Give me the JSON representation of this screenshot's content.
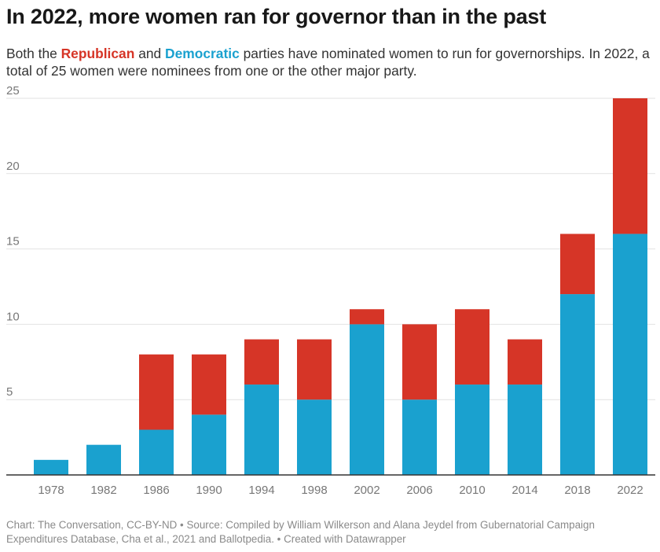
{
  "title": "In 2022, more women ran for governor than in the past",
  "subtitle": {
    "prefix": "Both the ",
    "republican_label": "Republican",
    "middle": " and ",
    "democratic_label": "Democratic",
    "suffix": " parties have nominated women to run for governorships. In 2022, a total of 25 women were nominees from one or the other major party."
  },
  "colors": {
    "democratic": "#1aa1cf",
    "republican": "#d63527",
    "grid": "#e2e2e2",
    "axis": "#333333",
    "tick_text": "#777777"
  },
  "chart_data": {
    "type": "bar",
    "stacked": true,
    "categories": [
      "1978",
      "1982",
      "1986",
      "1990",
      "1994",
      "1998",
      "2002",
      "2006",
      "2010",
      "2014",
      "2018",
      "2022"
    ],
    "series": [
      {
        "name": "Democratic",
        "values": [
          1,
          2,
          3,
          4,
          6,
          5,
          10,
          5,
          6,
          6,
          12,
          16
        ]
      },
      {
        "name": "Republican",
        "values": [
          0,
          0,
          5,
          4,
          3,
          4,
          1,
          5,
          5,
          3,
          4,
          9
        ]
      }
    ],
    "yticks": [
      "5",
      "10",
      "15",
      "20",
      "25"
    ],
    "ylim": [
      0,
      25
    ],
    "xlabel": "",
    "ylabel": "",
    "grid": true
  },
  "footer": "Chart: The Conversation, CC-BY-ND • Source: Compiled by William Wilkerson and Alana Jeydel from Gubernatorial Campaign Expenditures Database, Cha et al., 2021 and Ballotpedia. • Created with Datawrapper"
}
